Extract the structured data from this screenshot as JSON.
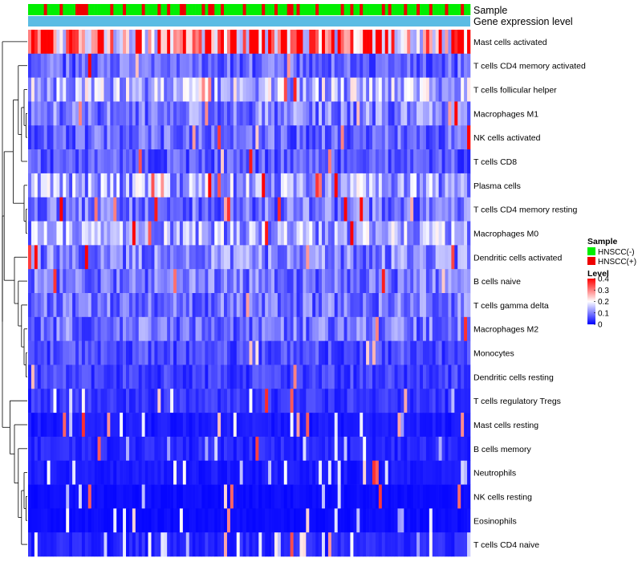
{
  "chart_data": {
    "type": "heatmap",
    "title": "",
    "annotation_tracks": [
      {
        "name": "Sample",
        "kind": "categorical"
      },
      {
        "name": "Gene expression level",
        "kind": "constant",
        "color": "#5bbce4"
      }
    ],
    "sample_groups": [
      {
        "label": "HNSCC(-)",
        "color": "#00ee00"
      },
      {
        "label": "HNSCC(+)",
        "color": "#ee0000"
      }
    ],
    "n_samples": 140,
    "sample_group_sequence": "000001000010000111100000001000100000100001001000110000010110010000001000001000100011010000010000000100100100000010100001000100010000100001",
    "rows": [
      {
        "name": "Mast cells activated",
        "mean": 0.3
      },
      {
        "name": "T cells CD4 memory activated",
        "mean": 0.08
      },
      {
        "name": "T cells follicular helper",
        "mean": 0.14
      },
      {
        "name": "Macrophages M1",
        "mean": 0.1
      },
      {
        "name": "NK cells activated",
        "mean": 0.08
      },
      {
        "name": "T cells CD8",
        "mean": 0.07
      },
      {
        "name": "Plasma cells",
        "mean": 0.13
      },
      {
        "name": "T cells CD4 memory resting",
        "mean": 0.09
      },
      {
        "name": "Macrophages M0",
        "mean": 0.13
      },
      {
        "name": "Dendritic cells activated",
        "mean": 0.1
      },
      {
        "name": "B cells naive",
        "mean": 0.09
      },
      {
        "name": "T cells gamma delta",
        "mean": 0.09
      },
      {
        "name": "Macrophages M2",
        "mean": 0.09
      },
      {
        "name": "Monocytes",
        "mean": 0.06
      },
      {
        "name": "Dendritic cells resting",
        "mean": 0.05
      },
      {
        "name": "T cells regulatory  Tregs",
        "mean": 0.04
      },
      {
        "name": "Mast cells resting",
        "mean": 0.02
      },
      {
        "name": "B cells memory",
        "mean": 0.03
      },
      {
        "name": "Neutrophils",
        "mean": 0.02
      },
      {
        "name": "NK cells resting",
        "mean": 0.01
      },
      {
        "name": "Eosinophils",
        "mean": 0.01
      },
      {
        "name": "T cells CD4 naive",
        "mean": 0.03
      }
    ],
    "color_scale": {
      "name": "Level",
      "min": 0,
      "max": 0.4,
      "stops": [
        {
          "value": 0,
          "color": "#0000ff"
        },
        {
          "value": 0.2,
          "color": "#ffffff"
        },
        {
          "value": 0.4,
          "color": "#ff0000"
        }
      ],
      "ticks": [
        "0.4",
        "0.3",
        "0.2",
        "0.1",
        "0"
      ]
    },
    "legend": {
      "sample_title": "Sample",
      "level_title": "Level",
      "position": "right"
    },
    "dendrogram": "rows"
  }
}
